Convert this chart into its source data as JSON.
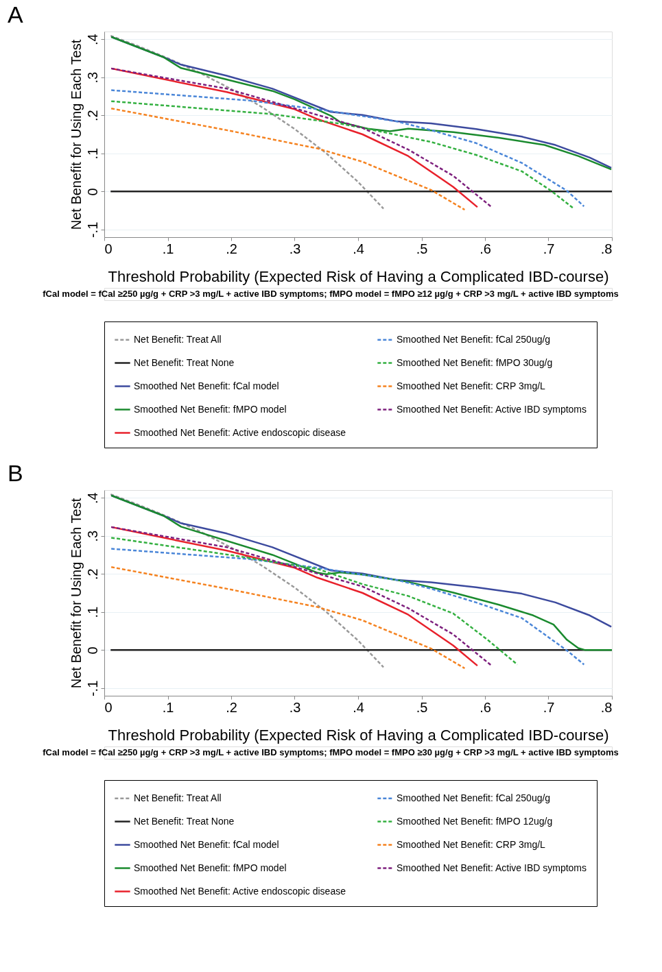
{
  "chart_data": [
    {
      "type": "line",
      "title": "A",
      "xlabel": "Threshold Probability (Expected Risk of Having a Complicated IBD-course)",
      "ylabel": "Net Benefit for Using Each Test",
      "xlim": [
        0,
        0.8
      ],
      "xticks": [
        0,
        {
          "value": 0.1,
          "label": ".1"
        },
        {
          "value": 0.2,
          "label": ".2"
        },
        {
          "value": 0.3,
          "label": ".3"
        },
        {
          "value": 0.4,
          "label": ".4"
        },
        {
          "value": 0.5,
          "label": ".5"
        },
        {
          "value": 0.6,
          "label": ".6"
        },
        {
          "value": 0.7,
          "label": ".7"
        },
        {
          "value": 0.8,
          "label": ".8"
        }
      ],
      "ylim": [
        -0.12,
        0.42
      ],
      "yticks": [
        {
          "value": -0.1,
          "label": "-.1"
        },
        0,
        {
          "value": 0.1,
          "label": ".1"
        },
        {
          "value": 0.2,
          "label": ".2"
        },
        {
          "value": 0.3,
          "label": ".3"
        },
        {
          "value": 0.4,
          "label": ".4"
        }
      ],
      "grid": "y",
      "legend": "bottom",
      "series": [
        {
          "name": "Net Benefit: Treat All",
          "color": "#999999",
          "line_style": "dashed",
          "x": [
            0.01,
            0.05,
            0.1,
            0.15,
            0.2,
            0.25,
            0.3,
            0.35,
            0.4,
            0.44
          ],
          "values": [
            0.409,
            0.384,
            0.35,
            0.312,
            0.269,
            0.22,
            0.164,
            0.1,
            0.025,
            -0.045
          ]
        },
        {
          "name": "Net Benefit: Treat None",
          "color": "#222222",
          "line_style": "solid",
          "x": [
            0.01,
            0.8
          ],
          "values": [
            0,
            0
          ]
        },
        {
          "name": "Smoothed Net Benefit: fCal model",
          "color": "#3c4a9e",
          "line_style": "solid",
          "x": [
            0.011,
            0.093,
            0.121,
            0.193,
            0.265,
            0.357,
            0.407,
            0.461,
            0.515,
            0.586,
            0.658,
            0.711,
            0.765,
            0.799
          ],
          "values": [
            0.406,
            0.353,
            0.333,
            0.304,
            0.27,
            0.209,
            0.201,
            0.184,
            0.179,
            0.164,
            0.144,
            0.122,
            0.089,
            0.062
          ]
        },
        {
          "name": "Smoothed Net Benefit: fMPO model",
          "color": "#1a8a2e",
          "line_style": "solid",
          "x": [
            0.011,
            0.093,
            0.121,
            0.265,
            0.3,
            0.357,
            0.372,
            0.415,
            0.45,
            0.479,
            0.55,
            0.622,
            0.694,
            0.747,
            0.799
          ],
          "values": [
            0.406,
            0.353,
            0.324,
            0.264,
            0.242,
            0.199,
            0.182,
            0.165,
            0.158,
            0.165,
            0.156,
            0.141,
            0.122,
            0.093,
            0.058
          ]
        },
        {
          "name": "Smoothed Net Benefit: Active endoscopic disease",
          "color": "#e8212b",
          "line_style": "solid",
          "x": [
            0.011,
            0.193,
            0.3,
            0.336,
            0.407,
            0.479,
            0.55,
            0.588
          ],
          "values": [
            0.323,
            0.261,
            0.216,
            0.19,
            0.15,
            0.093,
            0.012,
            -0.041
          ]
        },
        {
          "name": "Smoothed Net Benefit: fCal 250ug/g",
          "color": "#4a86d8",
          "line_style": "dashed",
          "x": [
            0.011,
            0.228,
            0.336,
            0.461,
            0.515,
            0.586,
            0.658,
            0.729,
            0.756
          ],
          "values": [
            0.266,
            0.239,
            0.216,
            0.184,
            0.161,
            0.127,
            0.075,
            0.002,
            -0.039
          ]
        },
        {
          "name": "Smoothed Net Benefit: fMPO 30ug/g",
          "color": "#33b040",
          "line_style": "dashed",
          "x": [
            0.011,
            0.265,
            0.372,
            0.407,
            0.515,
            0.586,
            0.658,
            0.704,
            0.74
          ],
          "values": [
            0.237,
            0.203,
            0.178,
            0.167,
            0.13,
            0.096,
            0.053,
            0.002,
            -0.045
          ]
        },
        {
          "name": "Smoothed Net Benefit: CRP 3mg/L",
          "color": "#f5821f",
          "line_style": "dashed",
          "x": [
            0.011,
            0.193,
            0.336,
            0.407,
            0.443,
            0.515,
            0.568
          ],
          "values": [
            0.218,
            0.161,
            0.113,
            0.078,
            0.053,
            0.004,
            -0.048
          ]
        },
        {
          "name": "Smoothed Net Benefit: Active IBD symptoms",
          "color": "#7d1f7d",
          "line_style": "dashed",
          "x": [
            0.011,
            0.193,
            0.336,
            0.407,
            0.479,
            0.55,
            0.609
          ],
          "values": [
            0.323,
            0.27,
            0.201,
            0.167,
            0.11,
            0.041,
            -0.039
          ]
        }
      ],
      "annotations": [
        "fCal model = fCal ≥250 µg/g + CRP >3 mg/L + active IBD symptoms; fMPO model = fMPO ≥12 µg/g + CRP >3 mg/L + active IBD symptoms"
      ]
    },
    {
      "type": "line",
      "title": "B",
      "xlabel": "Threshold Probability (Expected Risk of Having a Complicated IBD-course)",
      "ylabel": "Net Benefit for Using Each Test",
      "xlim": [
        0,
        0.8
      ],
      "xticks": [
        0,
        {
          "value": 0.1,
          "label": ".1"
        },
        {
          "value": 0.2,
          "label": ".2"
        },
        {
          "value": 0.3,
          "label": ".3"
        },
        {
          "value": 0.4,
          "label": ".4"
        },
        {
          "value": 0.5,
          "label": ".5"
        },
        {
          "value": 0.6,
          "label": ".6"
        },
        {
          "value": 0.7,
          "label": ".7"
        },
        {
          "value": 0.8,
          "label": ".8"
        }
      ],
      "ylim": [
        -0.12,
        0.42
      ],
      "yticks": [
        {
          "value": -0.1,
          "label": "-.1"
        },
        0,
        {
          "value": 0.1,
          "label": ".1"
        },
        {
          "value": 0.2,
          "label": ".2"
        },
        {
          "value": 0.3,
          "label": ".3"
        },
        {
          "value": 0.4,
          "label": ".4"
        }
      ],
      "grid": "y",
      "legend": "bottom",
      "series": [
        {
          "name": "Net Benefit: Treat All",
          "color": "#999999",
          "line_style": "dashed",
          "x": [
            0.01,
            0.05,
            0.1,
            0.15,
            0.2,
            0.25,
            0.3,
            0.35,
            0.4,
            0.44
          ],
          "values": [
            0.409,
            0.384,
            0.35,
            0.312,
            0.269,
            0.22,
            0.164,
            0.1,
            0.025,
            -0.045
          ]
        },
        {
          "name": "Net Benefit: Treat None",
          "color": "#222222",
          "line_style": "solid",
          "x": [
            0.01,
            0.8
          ],
          "values": [
            0,
            0
          ]
        },
        {
          "name": "Smoothed Net Benefit: fCal model",
          "color": "#3c4a9e",
          "line_style": "solid",
          "x": [
            0.011,
            0.093,
            0.121,
            0.193,
            0.265,
            0.357,
            0.407,
            0.461,
            0.515,
            0.586,
            0.658,
            0.711,
            0.765,
            0.799
          ],
          "values": [
            0.406,
            0.353,
            0.333,
            0.306,
            0.27,
            0.209,
            0.201,
            0.184,
            0.178,
            0.165,
            0.148,
            0.125,
            0.091,
            0.061
          ]
        },
        {
          "name": "Smoothed Net Benefit: fMPO model",
          "color": "#1a8a2e",
          "line_style": "solid",
          "x": [
            0.011,
            0.093,
            0.121,
            0.265,
            0.336,
            0.35,
            0.372,
            0.407,
            0.479,
            0.55,
            0.622,
            0.676,
            0.708,
            0.729,
            0.747,
            0.758,
            0.8
          ],
          "values": [
            0.406,
            0.353,
            0.324,
            0.25,
            0.203,
            0.199,
            0.204,
            0.198,
            0.179,
            0.151,
            0.119,
            0.091,
            0.067,
            0.027,
            0.005,
            0,
            0
          ]
        },
        {
          "name": "Smoothed Net Benefit: Active endoscopic disease",
          "color": "#e8212b",
          "line_style": "solid",
          "x": [
            0.011,
            0.193,
            0.3,
            0.336,
            0.407,
            0.479,
            0.55,
            0.588
          ],
          "values": [
            0.323,
            0.261,
            0.216,
            0.19,
            0.15,
            0.093,
            0.012,
            -0.041
          ]
        },
        {
          "name": "Smoothed Net Benefit: fCal 250ug/g",
          "color": "#4a86d8",
          "line_style": "dashed",
          "x": [
            0.011,
            0.228,
            0.336,
            0.461,
            0.515,
            0.586,
            0.658,
            0.729,
            0.756
          ],
          "values": [
            0.266,
            0.239,
            0.216,
            0.184,
            0.161,
            0.125,
            0.084,
            -0.001,
            -0.038
          ]
        },
        {
          "name": "Smoothed Net Benefit: fMPO 12ug/g",
          "color": "#33b040",
          "line_style": "dashed",
          "x": [
            0.011,
            0.193,
            0.336,
            0.407,
            0.479,
            0.55,
            0.604,
            0.651
          ],
          "values": [
            0.295,
            0.251,
            0.213,
            0.173,
            0.142,
            0.096,
            0.027,
            -0.038
          ]
        },
        {
          "name": "Smoothed Net Benefit: CRP 3mg/L",
          "color": "#f5821f",
          "line_style": "dashed",
          "x": [
            0.011,
            0.193,
            0.336,
            0.407,
            0.443,
            0.515,
            0.568
          ],
          "values": [
            0.218,
            0.161,
            0.113,
            0.078,
            0.053,
            0.004,
            -0.048
          ]
        },
        {
          "name": "Smoothed Net Benefit: Active IBD symptoms",
          "color": "#7d1f7d",
          "line_style": "dashed",
          "x": [
            0.011,
            0.193,
            0.336,
            0.407,
            0.479,
            0.55,
            0.609
          ],
          "values": [
            0.323,
            0.27,
            0.201,
            0.167,
            0.11,
            0.041,
            -0.039
          ]
        }
      ],
      "annotations": [
        "fCal model = fCal ≥250 µg/g + CRP >3 mg/L + active IBD symptoms; fMPO model = fMPO ≥30 µg/g + CRP >3 mg/L + active IBD symptoms"
      ]
    }
  ]
}
